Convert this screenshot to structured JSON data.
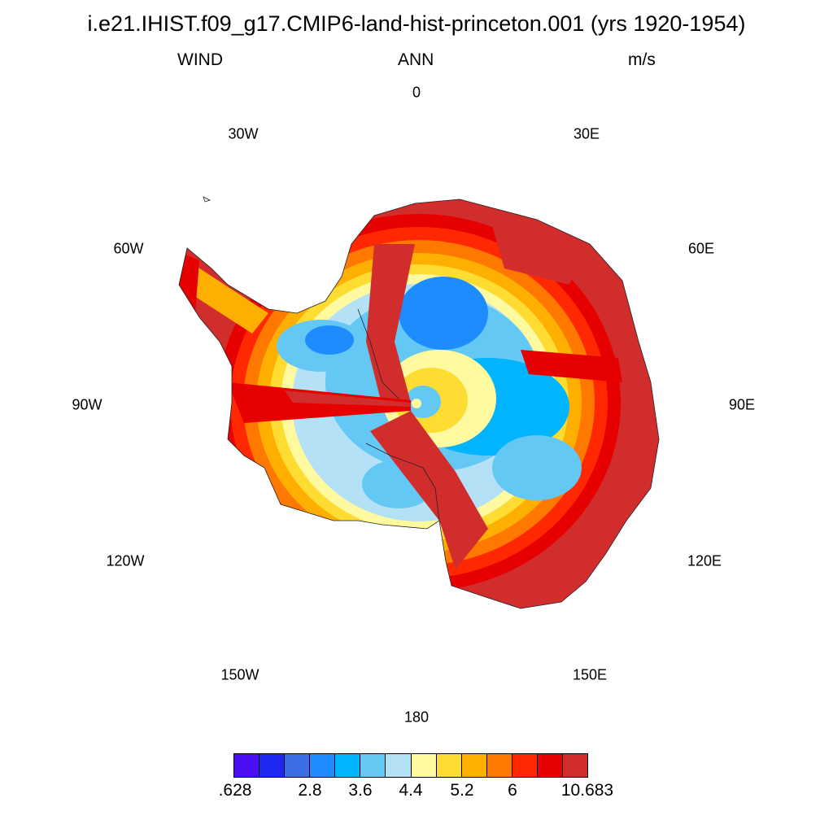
{
  "header": {
    "title": "i.e21.IHIST.f09_g17.CMIP6-land-hist-princeton.001 (yrs 1920-1954)",
    "left": "WIND",
    "center": "ANN",
    "right": "m/s"
  },
  "map": {
    "projection": "south polar stereographic",
    "region": "Antarctica",
    "variable": "WIND",
    "units": "m/s",
    "lon_labels": [
      "0",
      "30E",
      "60E",
      "90E",
      "120E",
      "150E",
      "180",
      "150W",
      "120W",
      "90W",
      "60W",
      "30W"
    ]
  },
  "colorbar": {
    "colors": [
      "#4B0FF5",
      "#1E28F0",
      "#3C6EE6",
      "#1E8CFF",
      "#00B4FF",
      "#64C8F5",
      "#B4E1F5",
      "#FFFAA0",
      "#FFDC32",
      "#FFAF00",
      "#FF7800",
      "#FF2800",
      "#E60000",
      "#D22D2D"
    ],
    "labels": [
      ".628",
      "2.8",
      "3.6",
      "4.4",
      "5.2",
      "6",
      "10.683"
    ]
  }
}
